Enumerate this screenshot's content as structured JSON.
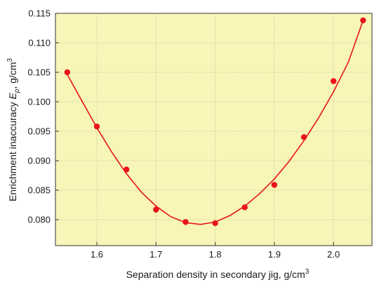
{
  "chart_data": {
    "type": "scatter",
    "xlabel": "Separation density in secondary jig,   g/cm",
    "xlabel_sup": "3",
    "ylabel_prefix": "Enrichment inaccuracy ",
    "ylabel_var": "E",
    "ylabel_sub": "p",
    "ylabel_suffix": ",   g/cm",
    "ylabel_sup": "3",
    "xlim": [
      1.53,
      2.065
    ],
    "ylim": [
      0.0756,
      0.115
    ],
    "x_ticks": [
      1.6,
      1.7,
      1.8,
      1.9,
      2.0
    ],
    "x_tick_labels": [
      "1.6",
      "1.7",
      "1.8",
      "1.9",
      "2.0"
    ],
    "y_ticks": [
      0.08,
      0.085,
      0.09,
      0.095,
      0.1,
      0.105,
      0.11,
      0.115
    ],
    "y_tick_labels": [
      "0.080",
      "0.085",
      "0.090",
      "0.095",
      "0.100",
      "0.105",
      "0.110",
      "0.115"
    ],
    "grid": true,
    "background_color": "#f7f5b8",
    "marker_color": "#e8141a",
    "line_color": "#e8141a",
    "series": [
      {
        "kind": "points",
        "x": [
          1.55,
          1.6,
          1.65,
          1.7,
          1.75,
          1.8,
          1.85,
          1.9,
          1.95,
          2.0,
          2.05
        ],
        "y": [
          0.105,
          0.0958,
          0.0885,
          0.0817,
          0.0796,
          0.0794,
          0.0821,
          0.0859,
          0.094,
          0.1035,
          0.1138
        ]
      },
      {
        "kind": "fit-curve",
        "x": [
          1.55,
          1.575,
          1.6,
          1.625,
          1.65,
          1.675,
          1.7,
          1.725,
          1.75,
          1.775,
          1.8,
          1.825,
          1.85,
          1.875,
          1.9,
          1.925,
          1.95,
          1.975,
          2.0,
          2.025,
          2.05
        ],
        "y": [
          0.1046,
          0.1001,
          0.0956,
          0.0915,
          0.0878,
          0.0847,
          0.0823,
          0.0805,
          0.0795,
          0.0792,
          0.0796,
          0.0807,
          0.0823,
          0.0844,
          0.0869,
          0.0899,
          0.0934,
          0.0973,
          0.1017,
          0.1067,
          0.1138
        ]
      }
    ]
  }
}
